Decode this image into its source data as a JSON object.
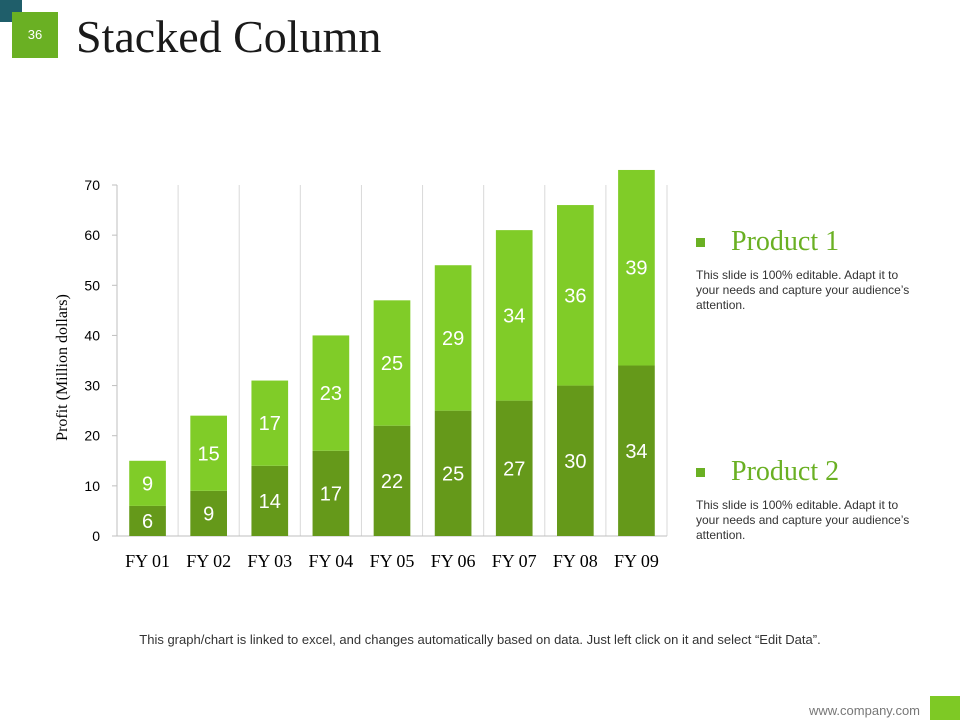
{
  "slide": {
    "page_number": "36",
    "title": "Stacked Column",
    "footnote": "This graph/chart is linked to excel, and changes automatically based on data. Just left click on it and select “Edit Data”.",
    "footer_url": "www.company.com"
  },
  "legend": [
    {
      "label": "Product 1",
      "description": "This slide is 100% editable. Adapt it to your needs and capture your audience’s attention."
    },
    {
      "label": "Product 2",
      "description": "This slide is 100% editable. Adapt it to your needs and capture your audience’s attention."
    }
  ],
  "colors": {
    "product1": "#80cc28",
    "product2": "#65991a",
    "accent": "#6ab023",
    "corner_dark": "#1f5e6a",
    "label_text": "#ffffff"
  },
  "chart_data": {
    "type": "bar",
    "stacked": true,
    "title": "Stacked Column",
    "xlabel": "",
    "ylabel": "Profit  (Million dollars)",
    "categories": [
      "FY 01",
      "FY 02",
      "FY 03",
      "FY 04",
      "FY 05",
      "FY 06",
      "FY 07",
      "FY 08",
      "FY 09"
    ],
    "series": [
      {
        "name": "Product 2",
        "values": [
          6,
          9,
          14,
          17,
          22,
          25,
          27,
          30,
          34
        ]
      },
      {
        "name": "Product 1",
        "values": [
          9,
          15,
          17,
          23,
          25,
          29,
          34,
          36,
          39
        ]
      }
    ],
    "ylim": [
      0,
      70
    ],
    "yticks": [
      0,
      10,
      20,
      30,
      40,
      50,
      60,
      70
    ],
    "grid": "vertical",
    "legend_position": "right"
  }
}
